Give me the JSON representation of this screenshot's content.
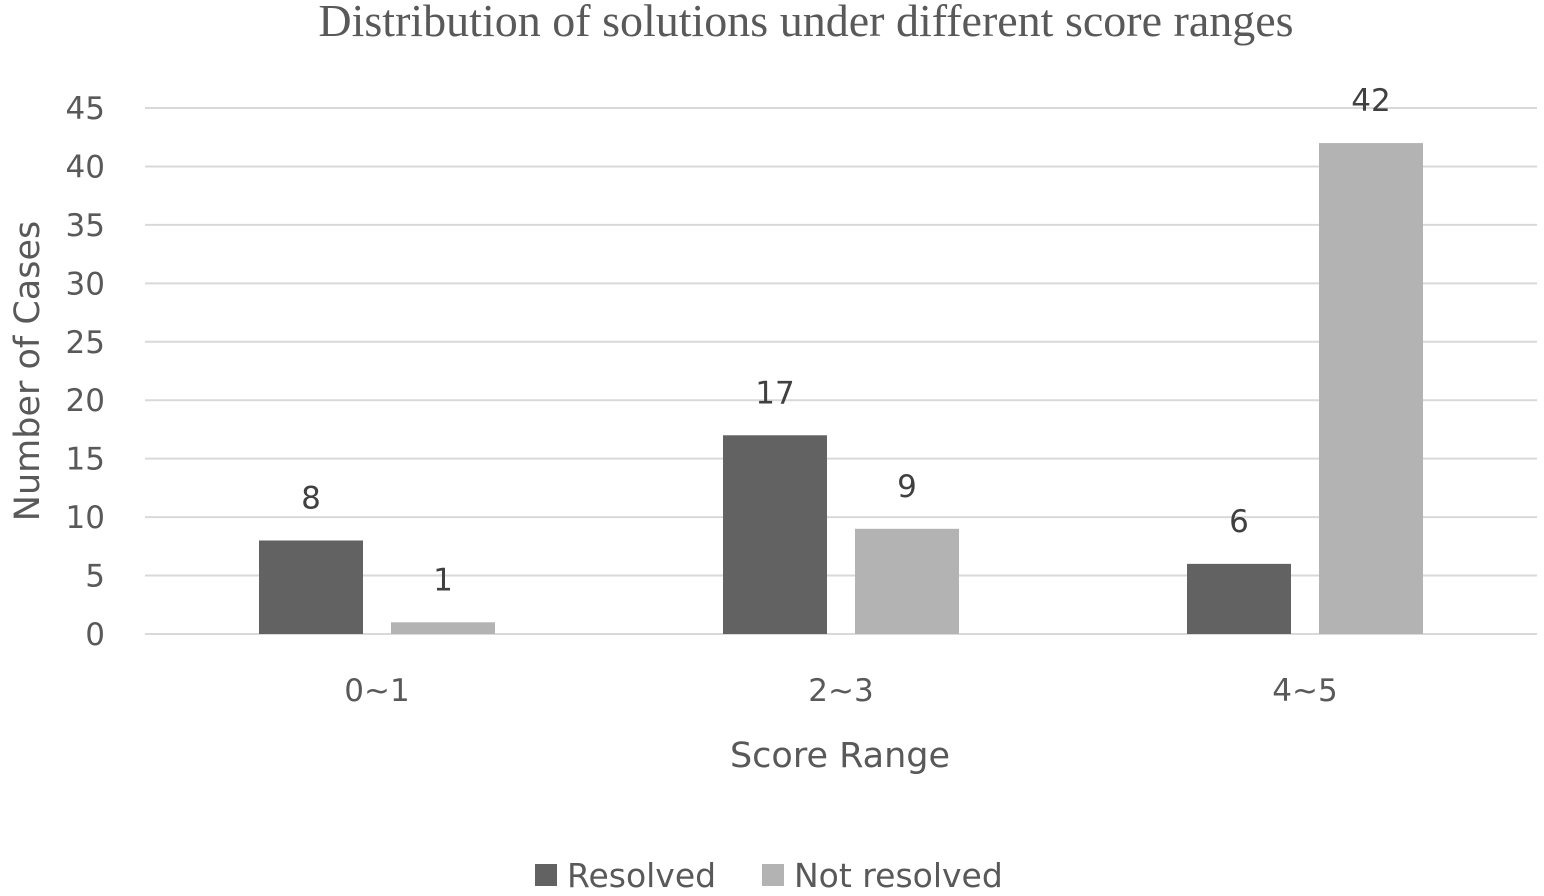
{
  "chart_data": {
    "type": "bar",
    "title": "Distribution of solutions under different score ranges",
    "xlabel": "Score Range",
    "ylabel": "Number of Cases",
    "categories": [
      "0~1",
      "2~3",
      "4~5"
    ],
    "series": [
      {
        "name": "Resolved",
        "values": [
          8,
          17,
          6
        ],
        "color": "#626262"
      },
      {
        "name": "Not resolved",
        "values": [
          1,
          9,
          42
        ],
        "color": "#b3b3b3"
      }
    ],
    "ylim": [
      0,
      45
    ],
    "yticks": [
      0,
      5,
      10,
      15,
      20,
      25,
      30,
      35,
      40,
      45
    ],
    "grid": true,
    "legend_position": "bottom"
  }
}
